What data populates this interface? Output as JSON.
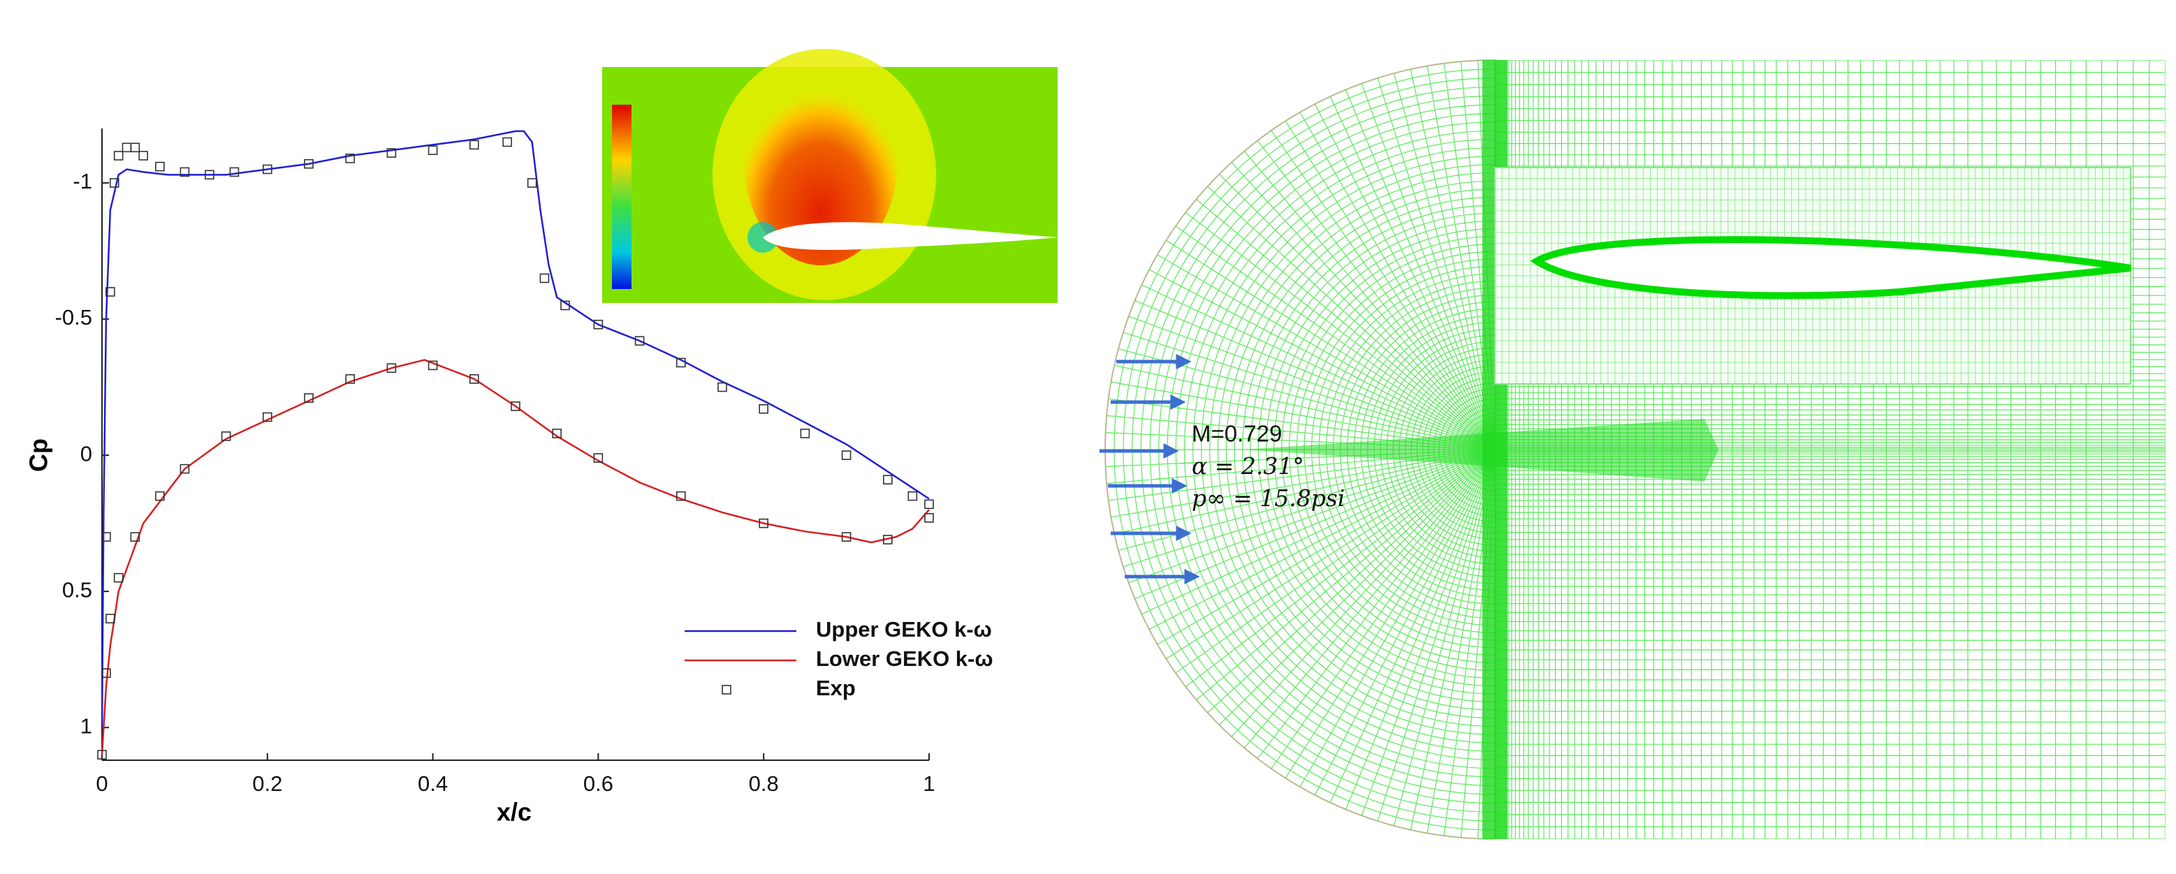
{
  "chart_data": {
    "type": "line",
    "x_label": "x/c",
    "y_label": "Cp",
    "xlim": [
      0,
      1
    ],
    "xticks": [
      0,
      0.2,
      0.4,
      0.6,
      0.8,
      1
    ],
    "ylim": [
      1.12,
      -1.2
    ],
    "yticks": [
      -1,
      -0.5,
      0,
      0.5,
      1
    ],
    "legend": "lower right",
    "series": [
      {
        "name": "Upper GEKO k-ω",
        "color": "#1f1fd6",
        "kind": "line",
        "x": [
          0,
          0.002,
          0.005,
          0.01,
          0.02,
          0.03,
          0.05,
          0.08,
          0.1,
          0.15,
          0.2,
          0.25,
          0.3,
          0.35,
          0.4,
          0.45,
          0.5,
          0.51,
          0.52,
          0.53,
          0.54,
          0.55,
          0.6,
          0.65,
          0.7,
          0.75,
          0.8,
          0.85,
          0.9,
          0.95,
          0.98,
          1
        ],
        "values": [
          1,
          0.2,
          -0.5,
          -0.9,
          -1.03,
          -1.05,
          -1.04,
          -1.03,
          -1.03,
          -1.03,
          -1.05,
          -1.07,
          -1.1,
          -1.12,
          -1.14,
          -1.16,
          -1.19,
          -1.19,
          -1.15,
          -0.9,
          -0.7,
          -0.58,
          -0.48,
          -0.42,
          -0.35,
          -0.27,
          -0.2,
          -0.12,
          -0.04,
          0.06,
          0.12,
          0.16
        ]
      },
      {
        "name": "Lower GEKO k-ω",
        "color": "#d62020",
        "kind": "line",
        "x": [
          0,
          0.005,
          0.01,
          0.02,
          0.05,
          0.1,
          0.15,
          0.2,
          0.25,
          0.3,
          0.35,
          0.39,
          0.45,
          0.5,
          0.55,
          0.6,
          0.65,
          0.7,
          0.75,
          0.8,
          0.85,
          0.9,
          0.93,
          0.96,
          0.98,
          1
        ],
        "values": [
          1.1,
          0.85,
          0.7,
          0.5,
          0.25,
          0.05,
          -0.06,
          -0.13,
          -0.2,
          -0.27,
          -0.32,
          -0.35,
          -0.28,
          -0.18,
          -0.07,
          0.02,
          0.1,
          0.16,
          0.21,
          0.25,
          0.28,
          0.3,
          0.32,
          0.3,
          0.27,
          0.2
        ]
      },
      {
        "name": "Exp",
        "color": "#333333",
        "kind": "scatter",
        "x": [
          0.005,
          0.01,
          0.015,
          0.02,
          0.03,
          0.04,
          0.05,
          0.07,
          0.1,
          0.13,
          0.16,
          0.2,
          0.25,
          0.3,
          0.35,
          0.4,
          0.45,
          0.49,
          0.52,
          0.535,
          0.56,
          0.6,
          0.65,
          0.7,
          0.75,
          0.8,
          0.85,
          0.9,
          0.95,
          0.98,
          1,
          0,
          0.005,
          0.01,
          0.02,
          0.04,
          0.07,
          0.1,
          0.15,
          0.2,
          0.25,
          0.3,
          0.35,
          0.4,
          0.45,
          0.5,
          0.55,
          0.6,
          0.7,
          0.8,
          0.9,
          0.95,
          1
        ],
        "values": [
          0.3,
          -0.6,
          -1,
          -1.1,
          -1.13,
          -1.13,
          -1.1,
          -1.06,
          -1.04,
          -1.03,
          -1.04,
          -1.05,
          -1.07,
          -1.09,
          -1.11,
          -1.12,
          -1.14,
          -1.15,
          -1,
          -0.65,
          -0.55,
          -0.48,
          -0.42,
          -0.34,
          -0.25,
          -0.17,
          -0.08,
          0,
          0.09,
          0.15,
          0.18,
          1.1,
          0.8,
          0.6,
          0.45,
          0.3,
          0.15,
          0.05,
          -0.07,
          -0.14,
          -0.21,
          -0.28,
          -0.32,
          -0.33,
          -0.28,
          -0.18,
          -0.08,
          0.01,
          0.15,
          0.25,
          0.3,
          0.31,
          0.23
        ]
      }
    ]
  },
  "mesh_annotations": [
    "M=0.729",
    "α = 2.31°",
    "p∞ = 15.8psi"
  ]
}
